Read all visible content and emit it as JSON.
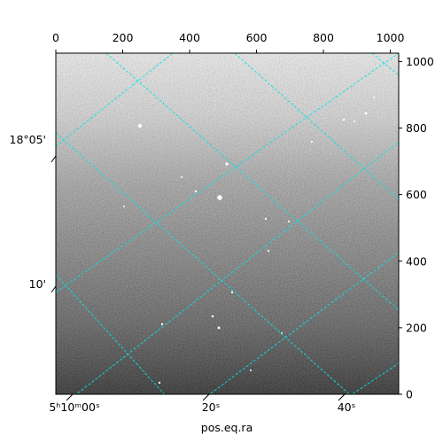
{
  "chart_data": {
    "type": "image",
    "title": "",
    "xlabel": "pos.eq.ra",
    "ylabel": "",
    "pixel_axes": {
      "x": {
        "range": [
          0,
          1025
        ],
        "ticks": [
          0,
          200,
          400,
          600,
          800,
          1000
        ]
      },
      "y": {
        "range": [
          0,
          1025
        ],
        "ticks": [
          0,
          200,
          400,
          600,
          800,
          1000
        ]
      }
    },
    "wcs_labels": {
      "ra_bottom": [
        "5ʰ10ᵐ00ˢ",
        "20ˢ",
        "40ˢ"
      ],
      "dec_left": [
        "18°05'",
        "10'"
      ]
    },
    "grid": true,
    "grid_color": "#00e5e5",
    "image_colormap": "grayscale",
    "background": "#ffffff",
    "frame_color": "#000000"
  }
}
